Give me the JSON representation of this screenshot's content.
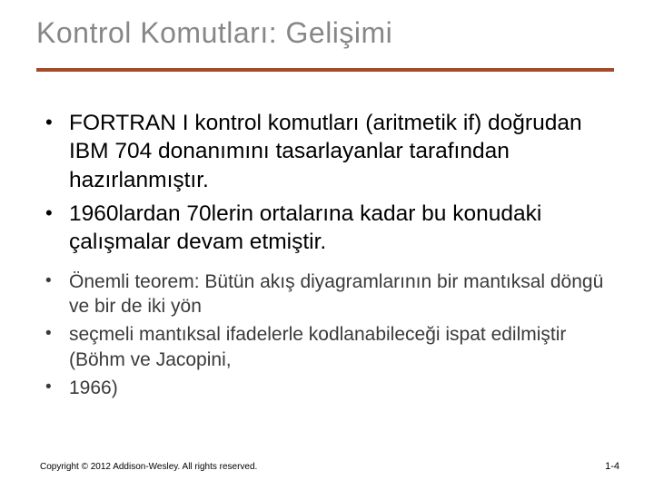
{
  "colors": {
    "title": "#878787",
    "rule": "#a44a2a",
    "bullet_big_text": "#000000",
    "bullet_big_marker": "#000000",
    "bullet_small_text": "#3a3a3a",
    "bullet_small_marker": "#3a3a3a",
    "footer": "#000000",
    "background": "#ffffff"
  },
  "title": "Kontrol Komutları: Gelişimi",
  "bullets_big": [
    "FORTRAN I kontrol komutları (aritmetik if) doğrudan IBM 704 donanımını tasarlayanlar tarafından hazırlanmıştır.",
    " 1960lardan 70lerin ortalarına kadar bu konudaki çalışmalar devam etmiştir."
  ],
  "bullets_small": [
    "Önemli teorem: Bütün akış diyagramlarının bir mantıksal döngü ve bir de iki yön",
    "seçmeli mantıksal ifadelerle kodlanabileceği ispat edilmiştir (Böhm ve Jacopini,",
    "1966)"
  ],
  "footer_left": "Copyright © 2012 Addison-Wesley. All rights reserved.",
  "footer_right": "1-4"
}
